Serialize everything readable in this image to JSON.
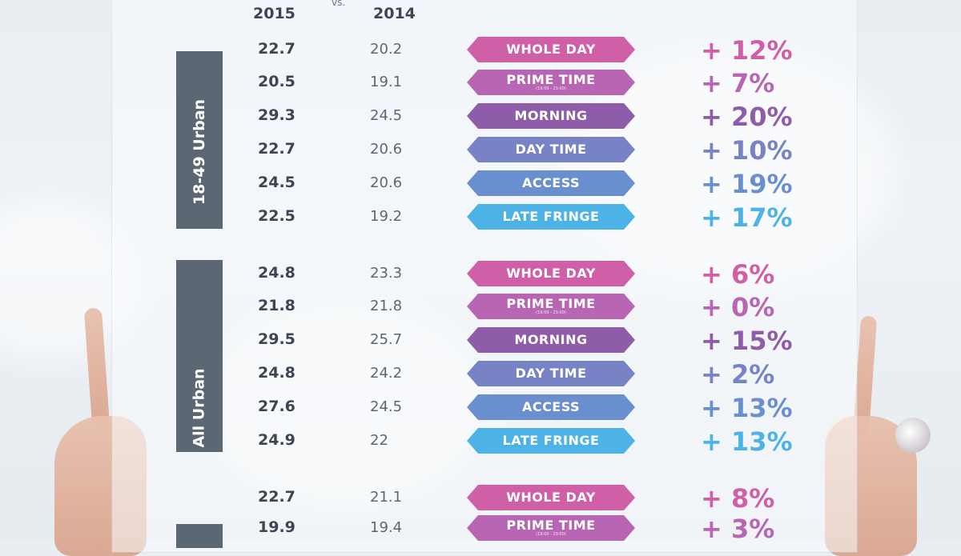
{
  "header": {
    "year_2015": "2015",
    "vs": "vs.",
    "year_2014": "2014"
  },
  "colors": {
    "whole_day": "#cf5fa6",
    "prime_time": "#b866b3",
    "morning": "#8e5ca8",
    "day_time": "#7783c4",
    "access": "#6a8fcf",
    "late_fringe": "#4db3e6"
  },
  "groups": [
    {
      "label": "18-49 Urban",
      "rows": [
        {
          "v2015": "22.7",
          "v2014": "20.2",
          "badge": "WHOLE DAY",
          "sub": "",
          "pct": "+ 12%",
          "kind": "whole_day"
        },
        {
          "v2015": "20.5",
          "v2014": "19.1",
          "badge": "PRIME TIME",
          "sub": "(19:00 - 23:00)",
          "pct": "+ 7%",
          "kind": "prime_time"
        },
        {
          "v2015": "29.3",
          "v2014": "24.5",
          "badge": "MORNING",
          "sub": "",
          "pct": "+ 20%",
          "kind": "morning"
        },
        {
          "v2015": "22.7",
          "v2014": "20.6",
          "badge": "DAY TIME",
          "sub": "",
          "pct": "+ 10%",
          "kind": "day_time"
        },
        {
          "v2015": "24.5",
          "v2014": "20.6",
          "badge": "ACCESS",
          "sub": "",
          "pct": "+ 19%",
          "kind": "access"
        },
        {
          "v2015": "22.5",
          "v2014": "19.2",
          "badge": "LATE FRINGE",
          "sub": "",
          "pct": "+ 17%",
          "kind": "late_fringe"
        }
      ]
    },
    {
      "label": "All Urban",
      "rows": [
        {
          "v2015": "24.8",
          "v2014": "23.3",
          "badge": "WHOLE DAY",
          "sub": "",
          "pct": "+ 6%",
          "kind": "whole_day"
        },
        {
          "v2015": "21.8",
          "v2014": "21.8",
          "badge": "PRIME TIME",
          "sub": "(19:00 - 23:00)",
          "pct": "+ 0%",
          "kind": "prime_time"
        },
        {
          "v2015": "29.5",
          "v2014": "25.7",
          "badge": "MORNING",
          "sub": "",
          "pct": "+ 15%",
          "kind": "morning"
        },
        {
          "v2015": "24.8",
          "v2014": "24.2",
          "badge": "DAY TIME",
          "sub": "",
          "pct": "+ 2%",
          "kind": "day_time"
        },
        {
          "v2015": "27.6",
          "v2014": "24.5",
          "badge": "ACCESS",
          "sub": "",
          "pct": "+ 13%",
          "kind": "access"
        },
        {
          "v2015": "24.9",
          "v2014": "22",
          "badge": "LATE FRINGE",
          "sub": "",
          "pct": "+ 13%",
          "kind": "late_fringe"
        }
      ]
    },
    {
      "label": "",
      "rows": [
        {
          "v2015": "22.7",
          "v2014": "21.1",
          "badge": "WHOLE DAY",
          "sub": "",
          "pct": "+ 8%",
          "kind": "whole_day"
        },
        {
          "v2015": "19.9",
          "v2014": "19.4",
          "badge": "PRIME TIME",
          "sub": "(19:00 - 23:00)",
          "pct": "+ 3%",
          "kind": "prime_time"
        }
      ]
    }
  ]
}
